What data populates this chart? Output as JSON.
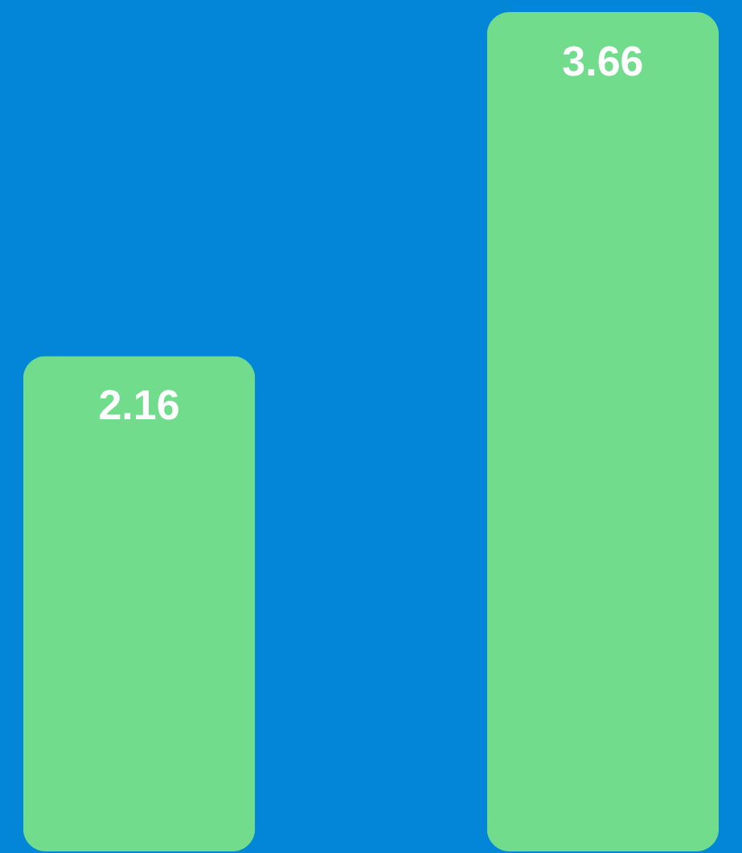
{
  "chart_data": {
    "type": "bar",
    "categories": [
      null,
      null
    ],
    "values": [
      2.16,
      3.66
    ],
    "color": "#70dc8c",
    "data_labels": true
  }
}
